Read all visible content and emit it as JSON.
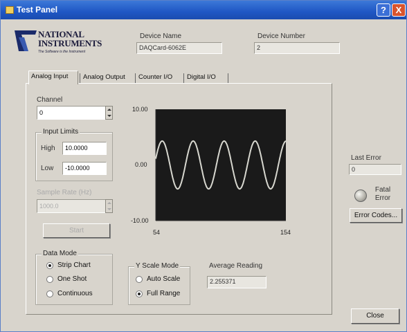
{
  "window": {
    "title": "Test Panel",
    "help_label": "?",
    "close_label": "X"
  },
  "logo": {
    "line1": "NATIONAL",
    "line2": "INSTRUMENTS",
    "tagline": "The Software is the Instrument"
  },
  "device": {
    "name_label": "Device Name",
    "name_value": "DAQCard-6062E",
    "number_label": "Device Number",
    "number_value": "2"
  },
  "tabs": [
    "Analog Input",
    "Analog Output",
    "Counter I/O",
    "Digital I/O"
  ],
  "analog_input": {
    "channel_label": "Channel",
    "channel_value": "0",
    "input_limits_title": "Input Limits",
    "high_label": "High",
    "high_value": "10.0000",
    "low_label": "Low",
    "low_value": "-10.0000",
    "sample_rate_label": "Sample Rate (Hz)",
    "sample_rate_value": "1000.0",
    "start_label": "Start",
    "data_mode_title": "Data Mode",
    "data_mode_options": [
      "Strip Chart",
      "One Shot",
      "Continuous"
    ],
    "data_mode_selected": 0,
    "y_scale_title": "Y Scale Mode",
    "y_scale_options": [
      "Auto Scale",
      "Full Range"
    ],
    "y_scale_selected": 1,
    "avg_reading_label": "Average Reading",
    "avg_reading_value": "2.255371"
  },
  "chart_data": {
    "type": "line",
    "title": "",
    "xlabel": "",
    "ylabel": "",
    "xlim": [
      54,
      154
    ],
    "ylim": [
      -10,
      10
    ],
    "x_tick_labels": [
      "54",
      "154"
    ],
    "y_tick_labels": [
      "10.00",
      "0.00",
      "-10.00"
    ],
    "series": [
      {
        "periods": 4.2,
        "amplitude": 4.3,
        "offset": 0,
        "phase_deg": 15
      }
    ],
    "colors": {
      "background": "#1a1a1a",
      "trace": "#d8d8d0"
    },
    "grid": false
  },
  "error": {
    "last_error_label": "Last Error",
    "last_error_value": "0",
    "fatal_label": "Fatal Error",
    "error_codes_label": "Error Codes...",
    "close_label": "Close"
  },
  "colors": {
    "titlebar": "#1f57c4",
    "window_bg": "#d8d4cc"
  }
}
